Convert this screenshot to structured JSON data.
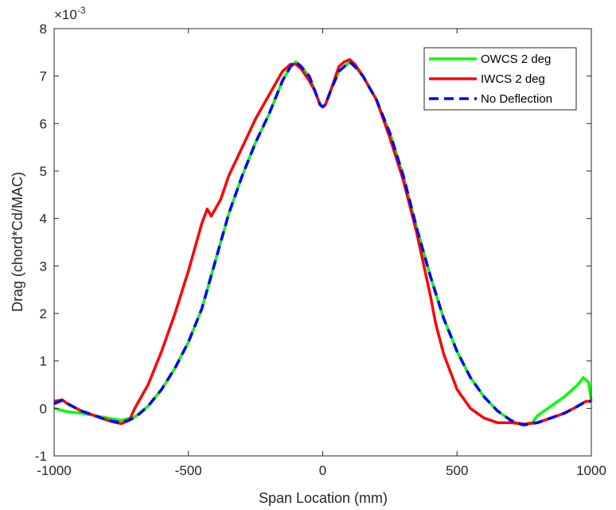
{
  "chart_data": {
    "type": "line",
    "xlabel": "Span Location (mm)",
    "ylabel": "Drag (chord*Cd/MAC)",
    "exponent_label": "×10",
    "exponent_value": "-3",
    "xlim": [
      -1000,
      1000
    ],
    "ylim": [
      -1,
      8
    ],
    "xticks": [
      -1000,
      -500,
      0,
      500,
      1000
    ],
    "yticks": [
      -1,
      0,
      1,
      2,
      3,
      4,
      5,
      6,
      7,
      8
    ],
    "grid": false,
    "legend_position": "top-right",
    "series": [
      {
        "name": "OWCS 2 deg",
        "color": "#00ff00",
        "style": "solid",
        "x": [
          -1000,
          -950,
          -900,
          -850,
          -800,
          -750,
          -700,
          -650,
          -600,
          -550,
          -500,
          -450,
          -400,
          -350,
          -300,
          -250,
          -200,
          -150,
          -120,
          -100,
          -80,
          -50,
          -30,
          -10,
          0,
          10,
          30,
          60,
          100,
          120,
          150,
          200,
          250,
          300,
          350,
          400,
          450,
          500,
          550,
          600,
          650,
          700,
          740,
          780,
          800,
          850,
          900,
          950,
          970,
          990,
          1000
        ],
        "y": [
          0.0,
          -0.07,
          -0.1,
          -0.15,
          -0.2,
          -0.25,
          -0.18,
          0.05,
          0.4,
          0.85,
          1.4,
          2.1,
          3.1,
          4.1,
          4.9,
          5.6,
          6.2,
          6.9,
          7.2,
          7.3,
          7.2,
          7.0,
          6.7,
          6.4,
          6.35,
          6.4,
          6.7,
          7.1,
          7.3,
          7.2,
          7.0,
          6.5,
          5.8,
          4.9,
          3.8,
          2.8,
          1.9,
          1.2,
          0.65,
          0.25,
          -0.05,
          -0.25,
          -0.35,
          -0.3,
          -0.15,
          0.05,
          0.25,
          0.5,
          0.65,
          0.55,
          0.15
        ]
      },
      {
        "name": "IWCS 2 deg",
        "color": "#ff0000",
        "style": "solid",
        "x": [
          -1000,
          -970,
          -950,
          -900,
          -850,
          -800,
          -770,
          -750,
          -720,
          -700,
          -650,
          -600,
          -550,
          -500,
          -450,
          -430,
          -415,
          -400,
          -380,
          -350,
          -300,
          -250,
          -200,
          -150,
          -120,
          -100,
          -80,
          -50,
          -30,
          -10,
          0,
          10,
          30,
          60,
          80,
          100,
          120,
          150,
          200,
          250,
          300,
          350,
          400,
          420,
          450,
          500,
          550,
          600,
          650,
          700,
          750,
          800,
          850,
          900,
          950,
          980,
          1000
        ],
        "y": [
          0.15,
          0.18,
          0.1,
          -0.05,
          -0.15,
          -0.25,
          -0.3,
          -0.32,
          -0.25,
          0.0,
          0.5,
          1.2,
          2.0,
          2.9,
          3.9,
          4.2,
          4.05,
          4.2,
          4.4,
          4.9,
          5.5,
          6.1,
          6.6,
          7.1,
          7.25,
          7.25,
          7.15,
          6.9,
          6.7,
          6.4,
          6.35,
          6.4,
          6.7,
          7.2,
          7.3,
          7.35,
          7.25,
          7.0,
          6.5,
          5.7,
          4.8,
          3.7,
          2.4,
          1.8,
          1.15,
          0.4,
          0.0,
          -0.2,
          -0.3,
          -0.3,
          -0.33,
          -0.3,
          -0.2,
          -0.1,
          0.05,
          0.15,
          0.15
        ]
      },
      {
        "name": "No Deflection",
        "color": "#0000ff",
        "style": "dashed",
        "x": [
          -1000,
          -970,
          -950,
          -900,
          -850,
          -800,
          -750,
          -700,
          -650,
          -600,
          -550,
          -500,
          -450,
          -400,
          -350,
          -300,
          -250,
          -200,
          -150,
          -120,
          -100,
          -80,
          -50,
          -30,
          -10,
          0,
          10,
          30,
          60,
          100,
          120,
          150,
          200,
          250,
          300,
          350,
          400,
          450,
          500,
          550,
          600,
          650,
          700,
          750,
          800,
          850,
          900,
          950,
          980,
          1000
        ],
        "y": [
          0.1,
          0.17,
          0.1,
          -0.05,
          -0.15,
          -0.25,
          -0.3,
          -0.2,
          0.05,
          0.4,
          0.85,
          1.4,
          2.1,
          3.1,
          4.1,
          4.9,
          5.6,
          6.2,
          6.9,
          7.2,
          7.3,
          7.2,
          7.0,
          6.7,
          6.4,
          6.35,
          6.4,
          6.7,
          7.1,
          7.3,
          7.2,
          7.0,
          6.5,
          5.8,
          4.9,
          3.8,
          2.8,
          1.9,
          1.2,
          0.65,
          0.25,
          -0.05,
          -0.25,
          -0.35,
          -0.3,
          -0.2,
          -0.1,
          0.05,
          0.15,
          0.15
        ]
      }
    ]
  }
}
